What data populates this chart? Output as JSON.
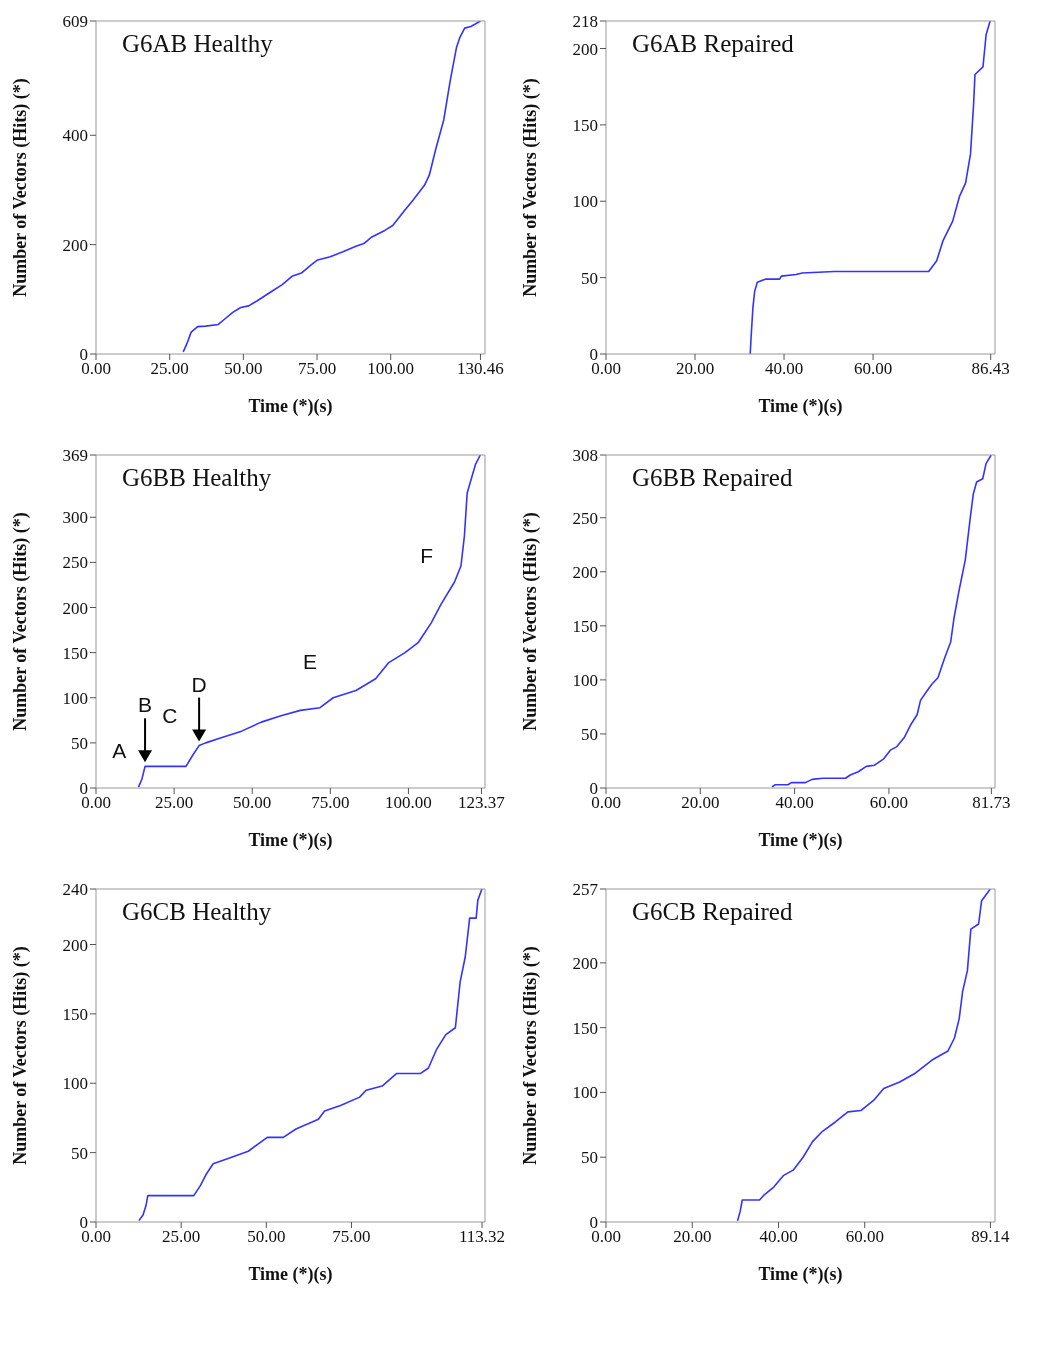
{
  "chart_data": [
    {
      "type": "line",
      "title": "G6AB Healthy",
      "xlabel": "Time (*)(s)",
      "ylabel": "Number of Vectors (Hits) (*)",
      "color": "#3333ff",
      "xlim": [
        0,
        132
      ],
      "ylim": [
        0,
        609
      ],
      "xticks": [
        {
          "value": 0,
          "label": "0.00"
        },
        {
          "value": 25,
          "label": "25.00"
        },
        {
          "value": 50,
          "label": "50.00"
        },
        {
          "value": 75,
          "label": "75.00"
        },
        {
          "value": 100,
          "label": "100.00"
        },
        {
          "value": 130.46,
          "label": "130.46"
        }
      ],
      "yticks": [
        0,
        200,
        400,
        609
      ],
      "x": [
        29.6,
        30.7,
        32.3,
        34.5,
        37.2,
        41.5,
        43.7,
        46.4,
        49.1,
        51.8,
        54.6,
        58.9,
        63.2,
        66.5,
        69.7,
        73,
        75.2,
        79.5,
        83.8,
        88.2,
        90.9,
        93.6,
        98,
        100.7,
        104.5,
        107.7,
        111.5,
        113.1,
        115.3,
        118,
        120.2,
        122.3,
        123.4,
        125.1,
        127.2,
        130.5
      ],
      "values": [
        4,
        17,
        40,
        50,
        51,
        54,
        64,
        76,
        85,
        88,
        97,
        112,
        127,
        142,
        148,
        163,
        172,
        178,
        187,
        197,
        202,
        214,
        226,
        235,
        261,
        282,
        309,
        327,
        375,
        428,
        500,
        560,
        578,
        596,
        599,
        609
      ]
    },
    {
      "type": "line",
      "title": "G6AB Repaired",
      "xlabel": "Time (*)(s)",
      "ylabel": "Number of Vectors (Hits) (*)",
      "color": "#3333ff",
      "xlim": [
        0,
        87.4
      ],
      "ylim": [
        0,
        218
      ],
      "xticks": [
        {
          "value": 0,
          "label": "0.00"
        },
        {
          "value": 20,
          "label": "20.00"
        },
        {
          "value": 40,
          "label": "40.00"
        },
        {
          "value": 60,
          "label": "60.00"
        },
        {
          "value": 86.43,
          "label": "86.43"
        }
      ],
      "yticks": [
        0,
        50,
        100,
        150,
        200,
        218
      ],
      "x": [
        32.4,
        32.6,
        33,
        33.4,
        34,
        35.8,
        39,
        39.4,
        42.7,
        44.1,
        51.3,
        72.5,
        74.3,
        75.7,
        77.9,
        79.4,
        80.8,
        81.9,
        82.6,
        82.9,
        84.7,
        85.4,
        86.3
      ],
      "values": [
        0,
        11,
        30,
        41,
        47,
        49,
        49,
        51,
        52,
        53,
        54,
        54,
        61,
        74,
        87,
        103,
        112,
        131,
        164,
        183,
        188,
        209,
        218
      ]
    },
    {
      "type": "line",
      "title": "G6BB Healthy",
      "xlabel": "Time (*)(s)",
      "ylabel": "Number of Vectors (Hits) (*)",
      "color": "#3333ff",
      "xlim": [
        0,
        124.5
      ],
      "ylim": [
        0,
        369
      ],
      "xticks": [
        {
          "value": 0,
          "label": "0.00"
        },
        {
          "value": 25,
          "label": "25.00"
        },
        {
          "value": 50,
          "label": "50.00"
        },
        {
          "value": 75,
          "label": "75.00"
        },
        {
          "value": 100,
          "label": "100.00"
        },
        {
          "value": 123.37,
          "label": "123.37"
        }
      ],
      "yticks": [
        0,
        50,
        100,
        150,
        200,
        250,
        300,
        369
      ],
      "x": [
        13.6,
        14.7,
        15.7,
        20.4,
        28.8,
        30.9,
        33,
        35.1,
        40.3,
        46.6,
        52.9,
        59.2,
        65.4,
        71.7,
        75.9,
        83.2,
        89.5,
        93.7,
        98.9,
        103.1,
        107.3,
        110.5,
        114.7,
        116.8,
        117.9,
        118.8,
        120.4,
        121.5,
        123
      ],
      "values": [
        1,
        10,
        24,
        24,
        24,
        36,
        47,
        50,
        56,
        63,
        73,
        80,
        86,
        89,
        100,
        108,
        121,
        139,
        150,
        161,
        183,
        204,
        228,
        246,
        279,
        327,
        346,
        359,
        369
      ],
      "annotations": [
        "A",
        {
          "text": "B",
          "x": 15.7,
          "y": 24
        },
        "C",
        {
          "text": "D",
          "x": 33,
          "y": 47
        },
        "E",
        "F"
      ]
    },
    {
      "type": "line",
      "title": "G6BB Repaired",
      "xlabel": "Time (*)(s)",
      "ylabel": "Number of Vectors (Hits) (*)",
      "color": "#3333ff",
      "xlim": [
        0,
        82.5
      ],
      "ylim": [
        0,
        308
      ],
      "xticks": [
        {
          "value": 0,
          "label": "0.00"
        },
        {
          "value": 20,
          "label": "20.00"
        },
        {
          "value": 40,
          "label": "40.00"
        },
        {
          "value": 60,
          "label": "60.00"
        },
        {
          "value": 81.73,
          "label": "81.73"
        }
      ],
      "yticks": [
        0,
        50,
        100,
        150,
        200,
        250,
        308
      ],
      "x": [
        35.2,
        35.9,
        38.6,
        39.3,
        42.3,
        43.7,
        46,
        50.8,
        51.8,
        53.5,
        55.2,
        56.9,
        58.9,
        60.3,
        61.6,
        63.3,
        64.7,
        66,
        66.7,
        68.1,
        69.1,
        70.4,
        71.8,
        73.1,
        73.8,
        74.8,
        76.2,
        77.2,
        77.9,
        78.6,
        79.9,
        80.6,
        81.7
      ],
      "values": [
        1,
        3,
        3,
        5,
        5,
        8,
        9,
        9,
        12,
        15,
        20,
        21,
        27,
        35,
        38,
        47,
        59,
        68,
        81,
        90,
        96,
        102,
        120,
        135,
        157,
        181,
        211,
        248,
        272,
        283,
        286,
        300,
        308
      ]
    },
    {
      "type": "line",
      "title": "G6CB Healthy",
      "xlabel": "Time (*)(s)",
      "ylabel": "Number of Vectors (Hits) (*)",
      "color": "#3333ff",
      "xlim": [
        0,
        114.2
      ],
      "ylim": [
        0,
        240
      ],
      "xticks": [
        {
          "value": 0,
          "label": "0.00"
        },
        {
          "value": 25,
          "label": "25.00"
        },
        {
          "value": 50,
          "label": "50.00"
        },
        {
          "value": 75,
          "label": "75.00"
        },
        {
          "value": 113.32,
          "label": "113.32"
        }
      ],
      "yticks": [
        0,
        50,
        100,
        150,
        200,
        240
      ],
      "x": [
        12.6,
        13.8,
        14.7,
        15.2,
        19.4,
        28.7,
        30.6,
        32.5,
        34.4,
        39,
        44.7,
        50.3,
        55,
        58.7,
        65.3,
        67.1,
        71.8,
        77.4,
        79.3,
        84,
        88.2,
        95.2,
        97.6,
        99.9,
        102.7,
        105.5,
        106.9,
        108.4,
        109.7,
        111.6,
        112.1,
        113.3
      ],
      "values": [
        1,
        5,
        12,
        19,
        19,
        19,
        26,
        35,
        42,
        46,
        51,
        61,
        61,
        67,
        74,
        80,
        84,
        90,
        95,
        98,
        107,
        107,
        111,
        124,
        135,
        140,
        173,
        191,
        219,
        219,
        232,
        240
      ]
    },
    {
      "type": "line",
      "title": "G6CB Repaired",
      "xlabel": "Time (*)(s)",
      "ylabel": "Number of Vectors (Hits) (*)",
      "color": "#3333ff",
      "xlim": [
        0,
        90.2
      ],
      "ylim": [
        0,
        257
      ],
      "xticks": [
        {
          "value": 0,
          "label": "0.00"
        },
        {
          "value": 20,
          "label": "20.00"
        },
        {
          "value": 40,
          "label": "40.00"
        },
        {
          "value": 60,
          "label": "60.00"
        },
        {
          "value": 89.14,
          "label": "89.14"
        }
      ],
      "yticks": [
        0,
        50,
        100,
        150,
        200,
        257
      ],
      "x": [
        30.5,
        31.1,
        31.6,
        35.6,
        36.7,
        38.9,
        41.2,
        43.4,
        45.7,
        47.9,
        50.2,
        53.1,
        56.1,
        59.1,
        62.1,
        64.4,
        68.1,
        71.8,
        75.6,
        79.3,
        80.8,
        81.9,
        82.7,
        83.8,
        84.6,
        86.4,
        87.1,
        89.1
      ],
      "values": [
        1,
        8,
        17,
        17,
        21,
        27,
        36,
        40,
        50,
        62,
        70,
        77,
        85,
        86,
        94,
        103,
        108,
        115,
        125,
        132,
        142,
        157,
        178,
        194,
        226,
        230,
        248,
        257
      ]
    }
  ]
}
